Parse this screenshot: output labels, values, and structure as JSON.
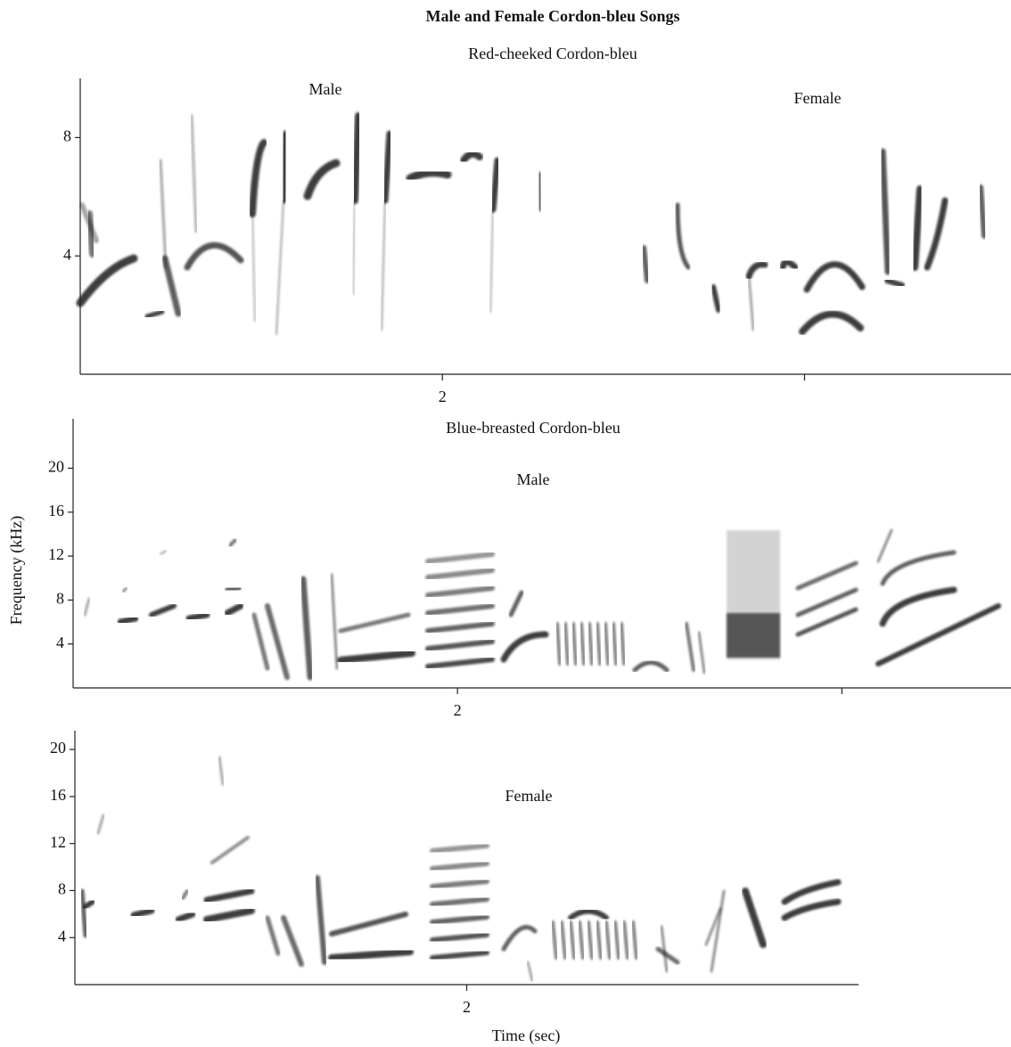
{
  "title": "Male and Female Cordon-bleu Songs",
  "y_label": "Frequency (kHz)",
  "x_label": "Time (sec)",
  "chart_data": [
    {
      "type": "spectrogram",
      "subtitle": "Red-cheeked Cordon-bleu",
      "annotations": [
        "Male",
        "Female"
      ],
      "xlim": [
        1.0,
        3.57
      ],
      "ylim": [
        0,
        10
      ],
      "xticks": [
        2,
        {
          "value": 3,
          "label": null
        }
      ],
      "yticks": [
        4,
        8
      ]
    },
    {
      "type": "spectrogram",
      "subtitle": "Blue-breasted Cordon-bleu",
      "annotations": [
        "Male"
      ],
      "xlim": [
        1.0,
        3.44
      ],
      "ylim": [
        0,
        24.5
      ],
      "xticks": [
        2,
        {
          "value": 3,
          "label": null
        }
      ],
      "yticks": [
        4,
        8,
        12,
        16,
        20
      ]
    },
    {
      "type": "spectrogram",
      "annotations": [
        "Female"
      ],
      "xlim": [
        1.0,
        3.0
      ],
      "ylim": [
        0,
        21.6
      ],
      "xticks": [
        2
      ],
      "yticks": [
        4,
        8,
        12,
        16,
        20
      ]
    }
  ]
}
